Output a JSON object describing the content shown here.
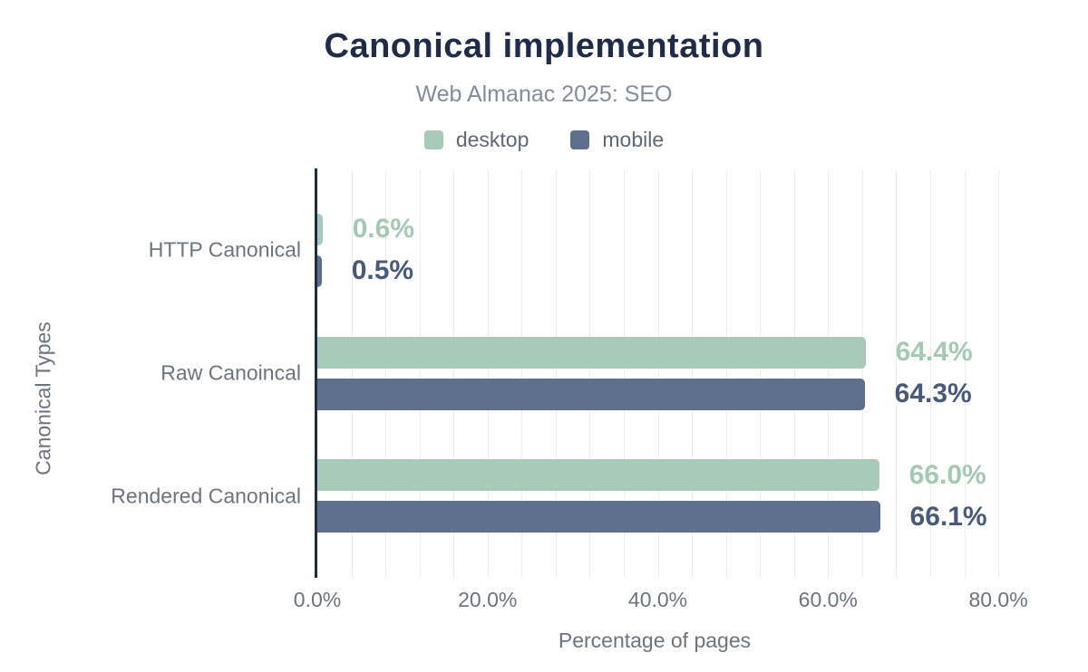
{
  "title": "Canonical implementation",
  "subtitle": "Web Almanac 2025: SEO",
  "legend": [
    {
      "label": "desktop",
      "color": "#a8cbb9"
    },
    {
      "label": "mobile",
      "color": "#5e708e"
    }
  ],
  "colors": {
    "title": "#1f2b49",
    "axis_line": "#1f2b49",
    "gridline": "#ededee",
    "desktop_bar": "#a8cbb9",
    "mobile_bar": "#5e708e",
    "desktop_value_label": "#a4c9b5",
    "mobile_value_label": "#48597c",
    "text_gray": "#6e747d",
    "subtitle_gray": "#858c98"
  },
  "chart_data": {
    "type": "bar",
    "orientation": "horizontal",
    "title": "Canonical implementation",
    "subtitle": "Web Almanac 2025: SEO",
    "categories": [
      "HTTP Canonical",
      "Raw Canoincal",
      "Rendered Canonical"
    ],
    "series": [
      {
        "name": "desktop",
        "color": "#a8cbb9",
        "label_color": "#a4c9b5",
        "values": [
          0.6,
          64.4,
          66.0
        ],
        "labels": [
          "0.6%",
          "64.4%",
          "66.0%"
        ]
      },
      {
        "name": "mobile",
        "color": "#5e708e",
        "label_color": "#48597c",
        "values": [
          0.5,
          64.3,
          66.1
        ],
        "labels": [
          "0.5%",
          "64.3%",
          "66.1%"
        ]
      }
    ],
    "xlabel": "Percentage of pages",
    "ylabel": "Canonical Types",
    "xlim": [
      0,
      85
    ],
    "xticks": [
      0,
      20,
      40,
      60,
      80
    ],
    "xtick_labels": [
      "0.0%",
      "20.0%",
      "40.0%",
      "60.0%",
      "80.0%"
    ],
    "grid": {
      "show": true,
      "minor_every": 4,
      "minor_max": 80,
      "color": "#ededee"
    },
    "legend_position": "top"
  }
}
